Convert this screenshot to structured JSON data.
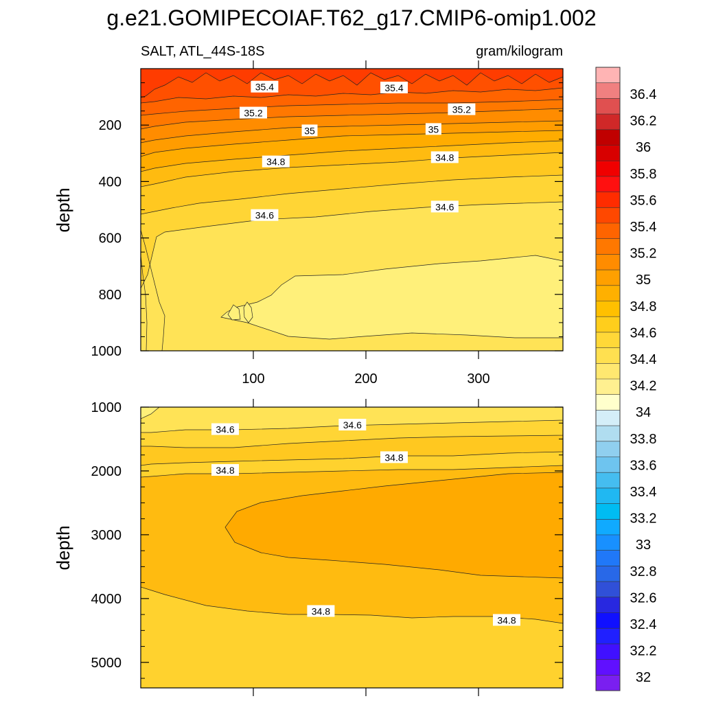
{
  "title": "g.e21.GOMIPECOIAF.T62_g17.CMIP6-omip1.002",
  "subtitle_left": "SALT, ATL_44S-18S",
  "subtitle_right": "gram/kilogram",
  "chart_data": [
    {
      "type": "contour",
      "panel": "upper",
      "ylabel": "depth",
      "xlabel": "",
      "xlim": [
        0,
        375
      ],
      "ylim": [
        1000,
        0
      ],
      "x_ticks": [
        100,
        200,
        300
      ],
      "y_ticks": [
        200,
        400,
        600,
        800,
        1000
      ],
      "contour_labels": [
        {
          "text": "35.4",
          "x": 110,
          "depth": 65
        },
        {
          "text": "35.4",
          "x": 225,
          "depth": 68
        },
        {
          "text": "35.2",
          "x": 100,
          "depth": 157
        },
        {
          "text": "35.2",
          "x": 285,
          "depth": 145
        },
        {
          "text": "35",
          "x": 150,
          "depth": 220
        },
        {
          "text": "35",
          "x": 260,
          "depth": 215
        },
        {
          "text": "34.8",
          "x": 120,
          "depth": 330
        },
        {
          "text": "34.8",
          "x": 270,
          "depth": 315
        },
        {
          "text": "34.6",
          "x": 110,
          "depth": 520
        },
        {
          "text": "34.6",
          "x": 270,
          "depth": 490
        }
      ]
    },
    {
      "type": "contour",
      "panel": "lower",
      "ylabel": "depth",
      "xlabel": "",
      "xlim": [
        0,
        375
      ],
      "ylim": [
        5400,
        1000
      ],
      "x_ticks": [
        100,
        200,
        300
      ],
      "y_ticks": [
        1000,
        2000,
        3000,
        4000,
        5000
      ],
      "contour_labels": [
        {
          "text": "34.6",
          "x": 75,
          "depth": 1350
        },
        {
          "text": "34.6",
          "x": 188,
          "depth": 1280
        },
        {
          "text": "34.8",
          "x": 75,
          "depth": 1990
        },
        {
          "text": "34.8",
          "x": 225,
          "depth": 1790
        },
        {
          "text": "34.8",
          "x": 160,
          "depth": 4200
        },
        {
          "text": "34.8",
          "x": 325,
          "depth": 4340
        }
      ]
    }
  ],
  "colorbar": {
    "levels": [
      "36.4",
      "36.2",
      "36",
      "35.8",
      "35.6",
      "35.4",
      "35.2",
      "35",
      "34.8",
      "34.6",
      "34.4",
      "34.2",
      "34",
      "33.8",
      "33.6",
      "33.4",
      "33.2",
      "33",
      "32.8",
      "32.6",
      "32.4",
      "32.2",
      "32"
    ],
    "colors": [
      "#ffb4b4",
      "#f08080",
      "#e05050",
      "#d02828",
      "#c00000",
      "#d80000",
      "#f00000",
      "#ff1010",
      "#ff2c00",
      "#ff4800",
      "#ff6400",
      "#ff7800",
      "#ff8c00",
      "#ffa000",
      "#ffb000",
      "#ffc000",
      "#ffce1c",
      "#ffd838",
      "#ffe050",
      "#ffe870",
      "#fff090",
      "#ffffcc",
      "#d4eef8",
      "#b0ddf0",
      "#90cfef",
      "#6ec4ef",
      "#45bdf0",
      "#20b8f2",
      "#00bcf2",
      "#10aaff",
      "#1890ff",
      "#2078f8",
      "#2868e8",
      "#3050d8",
      "#2828e0",
      "#1010ff",
      "#2020ff",
      "#4010ff",
      "#6010ff",
      "#7a1ff0"
    ]
  }
}
